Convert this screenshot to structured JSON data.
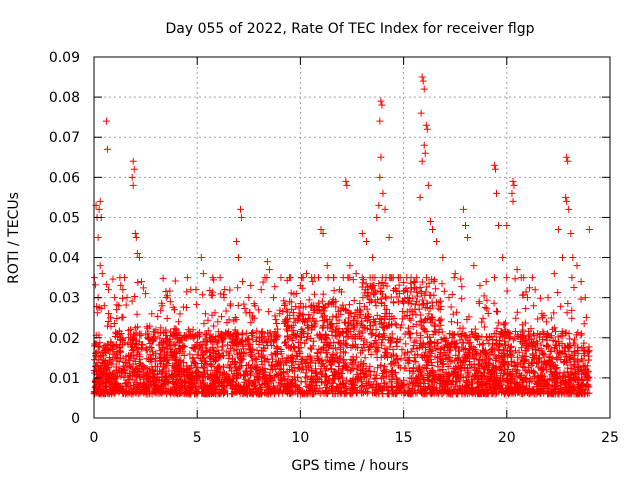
{
  "chart_data": {
    "type": "scatter",
    "title": "Day 055 of 2022, Rate Of TEC Index for receiver flgp",
    "xlabel": "GPS time / hours",
    "ylabel": "ROTI / TECUs",
    "xlim": [
      0,
      25
    ],
    "ylim": [
      0,
      0.09
    ],
    "grid": true,
    "marker": "+",
    "marker_color": "#ff0000",
    "x_ticks": [
      0,
      5,
      10,
      15,
      20,
      25
    ],
    "x_tick_labels": [
      "0",
      "5",
      "10",
      "15",
      "20",
      "25"
    ],
    "y_ticks": [
      0,
      0.01,
      0.02,
      0.03,
      0.04,
      0.05,
      0.06,
      0.07,
      0.08,
      0.09
    ],
    "y_tick_labels": [
      "0",
      "0.01",
      "0.02",
      "0.03",
      "0.04",
      "0.05",
      "0.06",
      "0.07",
      "0.08",
      "0.09"
    ],
    "series": [
      {
        "name": "ROTI",
        "points": [
          [
            0.1,
            0.053
          ],
          [
            0.15,
            0.05
          ],
          [
            0.2,
            0.045
          ],
          [
            0.25,
            0.052
          ],
          [
            0.3,
            0.054
          ],
          [
            0.35,
            0.05
          ],
          [
            0.3,
            0.038
          ],
          [
            0.4,
            0.036
          ],
          [
            0.2,
            0.03
          ],
          [
            0.5,
            0.028
          ],
          [
            0.6,
            0.074
          ],
          [
            0.65,
            0.067
          ],
          [
            0.7,
            0.032
          ],
          [
            0.8,
            0.025
          ],
          [
            1.0,
            0.03
          ],
          [
            1.2,
            0.028
          ],
          [
            1.4,
            0.032
          ],
          [
            1.6,
            0.03
          ],
          [
            1.9,
            0.064
          ],
          [
            1.95,
            0.062
          ],
          [
            1.85,
            0.06
          ],
          [
            1.9,
            0.058
          ],
          [
            2.0,
            0.046
          ],
          [
            2.05,
            0.045
          ],
          [
            2.1,
            0.041
          ],
          [
            2.2,
            0.04
          ],
          [
            2.3,
            0.034
          ],
          [
            2.5,
            0.031
          ],
          [
            2.8,
            0.026
          ],
          [
            3.0,
            0.022
          ],
          [
            3.3,
            0.028
          ],
          [
            3.5,
            0.03
          ],
          [
            3.7,
            0.029
          ],
          [
            3.9,
            0.027
          ],
          [
            4.1,
            0.024
          ],
          [
            4.4,
            0.02
          ],
          [
            4.8,
            0.022
          ],
          [
            5.2,
            0.04
          ],
          [
            5.3,
            0.036
          ],
          [
            5.4,
            0.026
          ],
          [
            5.7,
            0.02
          ],
          [
            6.0,
            0.024
          ],
          [
            6.3,
            0.03
          ],
          [
            6.6,
            0.028
          ],
          [
            6.9,
            0.044
          ],
          [
            7.0,
            0.04
          ],
          [
            7.1,
            0.052
          ],
          [
            7.15,
            0.05
          ],
          [
            7.2,
            0.034
          ],
          [
            7.5,
            0.03
          ],
          [
            7.8,
            0.028
          ],
          [
            8.1,
            0.032
          ],
          [
            8.4,
            0.039
          ],
          [
            8.5,
            0.037
          ],
          [
            8.7,
            0.03
          ],
          [
            9.0,
            0.026
          ],
          [
            9.4,
            0.024
          ],
          [
            9.8,
            0.031
          ],
          [
            10.0,
            0.033
          ],
          [
            10.3,
            0.036
          ],
          [
            10.6,
            0.034
          ],
          [
            11.0,
            0.047
          ],
          [
            11.1,
            0.046
          ],
          [
            11.3,
            0.038
          ],
          [
            11.6,
            0.035
          ],
          [
            11.9,
            0.032
          ],
          [
            12.2,
            0.059
          ],
          [
            12.25,
            0.058
          ],
          [
            12.4,
            0.038
          ],
          [
            12.7,
            0.036
          ],
          [
            13.0,
            0.046
          ],
          [
            13.2,
            0.044
          ],
          [
            13.5,
            0.04
          ],
          [
            13.7,
            0.05
          ],
          [
            13.8,
            0.053
          ],
          [
            13.9,
            0.079
          ],
          [
            13.95,
            0.078
          ],
          [
            13.85,
            0.074
          ],
          [
            13.9,
            0.065
          ],
          [
            13.85,
            0.06
          ],
          [
            14.0,
            0.056
          ],
          [
            14.1,
            0.052
          ],
          [
            14.3,
            0.045
          ],
          [
            14.5,
            0.035
          ],
          [
            14.8,
            0.031
          ],
          [
            15.2,
            0.03
          ],
          [
            15.5,
            0.034
          ],
          [
            15.8,
            0.055
          ],
          [
            15.9,
            0.085
          ],
          [
            15.95,
            0.084
          ],
          [
            16.0,
            0.082
          ],
          [
            15.85,
            0.076
          ],
          [
            16.1,
            0.073
          ],
          [
            16.15,
            0.072
          ],
          [
            16.0,
            0.068
          ],
          [
            16.05,
            0.066
          ],
          [
            15.9,
            0.064
          ],
          [
            16.2,
            0.058
          ],
          [
            16.3,
            0.049
          ],
          [
            16.4,
            0.047
          ],
          [
            16.6,
            0.044
          ],
          [
            16.9,
            0.04
          ],
          [
            17.2,
            0.03
          ],
          [
            17.5,
            0.036
          ],
          [
            17.9,
            0.052
          ],
          [
            18.0,
            0.048
          ],
          [
            18.1,
            0.045
          ],
          [
            18.4,
            0.038
          ],
          [
            18.7,
            0.033
          ],
          [
            19.0,
            0.034
          ],
          [
            19.4,
            0.063
          ],
          [
            19.45,
            0.062
          ],
          [
            19.5,
            0.056
          ],
          [
            19.6,
            0.048
          ],
          [
            19.8,
            0.04
          ],
          [
            20.0,
            0.048
          ],
          [
            20.3,
            0.059
          ],
          [
            20.35,
            0.058
          ],
          [
            20.25,
            0.056
          ],
          [
            20.3,
            0.054
          ],
          [
            20.5,
            0.037
          ],
          [
            20.7,
            0.035
          ],
          [
            21.0,
            0.03
          ],
          [
            21.3,
            0.028
          ],
          [
            21.7,
            0.026
          ],
          [
            22.0,
            0.03
          ],
          [
            22.3,
            0.036
          ],
          [
            22.5,
            0.047
          ],
          [
            22.7,
            0.04
          ],
          [
            22.9,
            0.065
          ],
          [
            22.95,
            0.064
          ],
          [
            22.85,
            0.055
          ],
          [
            22.9,
            0.054
          ],
          [
            23.0,
            0.052
          ],
          [
            23.1,
            0.046
          ],
          [
            23.2,
            0.04
          ],
          [
            23.4,
            0.038
          ],
          [
            23.6,
            0.034
          ],
          [
            23.8,
            0.03
          ],
          [
            24.0,
            0.047
          ]
        ],
        "dense_band": {
          "description": "background ROTI cloud",
          "x_range": [
            0,
            24
          ],
          "y_range": [
            0.002,
            0.035
          ],
          "point_count": 4200
        }
      }
    ]
  }
}
